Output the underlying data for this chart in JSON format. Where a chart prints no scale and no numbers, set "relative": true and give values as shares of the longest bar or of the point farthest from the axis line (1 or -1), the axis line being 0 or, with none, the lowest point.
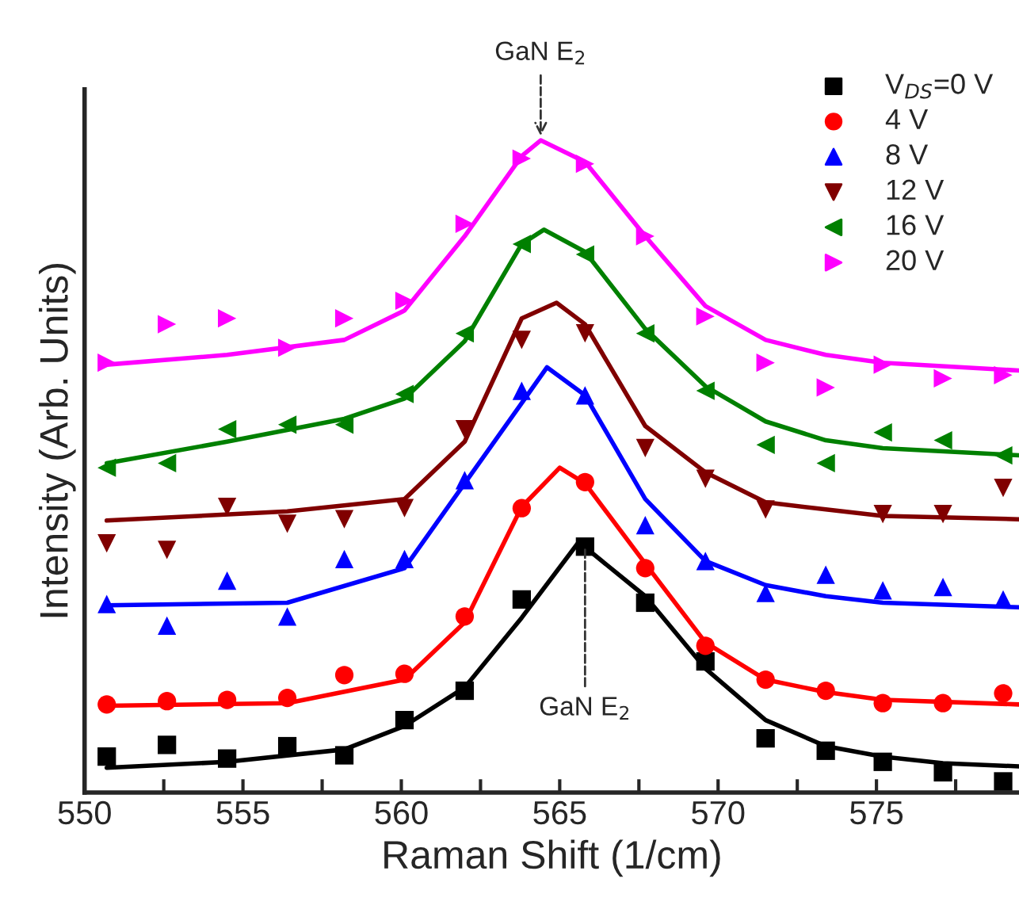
{
  "chart_data": {
    "type": "scatter",
    "relative": true,
    "xlabel": "Raman Shift (1/cm)",
    "ylabel": "Intensity (Arb. Units)",
    "xlim": [
      550,
      579.5
    ],
    "xticks": [
      550,
      {
        "value": 552.5,
        "label": null
      },
      555,
      {
        "value": 557.5,
        "label": null
      },
      560,
      {
        "value": 562.5,
        "label": null
      },
      565,
      {
        "value": 567.5,
        "label": null
      },
      570,
      {
        "value": 572.5,
        "label": null
      },
      575,
      {
        "value": 577.5,
        "label": null
      }
    ],
    "legend": "top right",
    "annotations": [
      {
        "text": "GaN E$_{2}$",
        "x": 564.4,
        "y": 1.0
      },
      {
        "text": "GaN E$_{2}$",
        "x": 565.8,
        "y": 0.384
      }
    ],
    "series": [
      {
        "name": "V$_{DS}$=0 V",
        "type": "scatter",
        "marker": "square",
        "color": "#000000",
        "x": [
          550.7,
          552.6,
          554.5,
          556.4,
          558.2,
          560.1,
          562.0,
          563.8,
          565.8,
          567.7,
          569.6,
          571.5,
          573.4,
          575.2,
          577.1,
          579.0
        ],
        "values": [
          0.055,
          0.073,
          0.052,
          0.071,
          0.057,
          0.111,
          0.156,
          0.296,
          0.377,
          0.291,
          0.201,
          0.083,
          0.064,
          0.047,
          0.031,
          0.017
        ]
      },
      {
        "name": "4 V",
        "type": "scatter",
        "marker": "circle",
        "color": "#ff0000",
        "x": [
          550.7,
          552.6,
          554.5,
          556.4,
          558.2,
          560.1,
          562.0,
          563.8,
          565.8,
          567.7,
          569.6,
          571.5,
          573.4,
          575.2,
          577.1,
          579.0
        ],
        "values": [
          0.135,
          0.14,
          0.142,
          0.145,
          0.18,
          0.182,
          0.27,
          0.436,
          0.476,
          0.344,
          0.225,
          0.173,
          0.156,
          0.137,
          0.137,
          0.152
        ]
      },
      {
        "name": "8 V",
        "type": "scatter",
        "marker": "triangle",
        "color": "#0000ff",
        "x": [
          550.7,
          552.6,
          554.5,
          556.4,
          558.2,
          560.1,
          562.0,
          563.8,
          565.8,
          567.7,
          569.6,
          571.5,
          573.4,
          575.2,
          577.1,
          579.0
        ],
        "values": [
          0.289,
          0.256,
          0.325,
          0.27,
          0.358,
          0.358,
          0.479,
          0.616,
          0.609,
          0.41,
          0.355,
          0.306,
          0.334,
          0.31,
          0.315,
          0.296
        ]
      },
      {
        "name": "12 V",
        "type": "scatter",
        "marker": "triangle-down",
        "color": "#800000",
        "x": [
          550.7,
          552.6,
          554.5,
          556.4,
          558.2,
          560.1,
          562.0,
          563.8,
          565.8,
          567.7,
          569.6,
          571.5,
          573.4,
          575.2,
          577.1,
          579.0
        ],
        "values": [
          0.382,
          0.372,
          0.438,
          0.412,
          0.419,
          0.436,
          0.557,
          0.694,
          0.704,
          0.528,
          0.481,
          0.434,
          null,
          0.427,
          0.427,
          0.467
        ]
      },
      {
        "name": "16 V",
        "type": "scatter",
        "marker": "triangle-left",
        "color": "#008000",
        "x": [
          550.7,
          552.6,
          554.5,
          556.4,
          558.2,
          560.1,
          562.0,
          563.8,
          565.8,
          567.7,
          569.6,
          571.5,
          573.4,
          575.2,
          577.1,
          579.0
        ],
        "values": [
          0.498,
          0.505,
          0.557,
          0.564,
          0.564,
          0.611,
          0.704,
          0.841,
          0.825,
          0.704,
          0.616,
          0.533,
          0.505,
          0.552,
          0.54,
          0.517
        ]
      },
      {
        "name": "20 V",
        "type": "scatter",
        "marker": "triangle-right",
        "color": "#ff00ff",
        "x": [
          550.7,
          552.6,
          554.5,
          556.4,
          558.2,
          560.1,
          562.0,
          563.8,
          565.8,
          567.7,
          569.6,
          571.5,
          573.4,
          575.2,
          577.1,
          579.0
        ],
        "values": [
          0.659,
          0.718,
          0.727,
          0.682,
          0.727,
          0.754,
          0.872,
          0.972,
          0.964,
          0.853,
          0.73,
          0.659,
          0.621,
          0.656,
          0.635,
          0.64
        ]
      },
      {
        "type": "line",
        "color": "#000000",
        "x": [
          550.7,
          554.5,
          558.2,
          560.1,
          562.0,
          563.8,
          565.6,
          567.7,
          569.6,
          571.5,
          573.4,
          575.2,
          577.1,
          579.5
        ],
        "values": [
          0.038,
          0.047,
          0.066,
          0.102,
          0.161,
          0.268,
          0.384,
          0.301,
          0.19,
          0.111,
          0.071,
          0.055,
          0.045,
          0.04
        ]
      },
      {
        "type": "line",
        "color": "#ff0000",
        "x": [
          550.7,
          556.4,
          560.1,
          562.0,
          563.8,
          565.0,
          565.8,
          567.7,
          569.6,
          571.5,
          573.4,
          575.2,
          579.5
        ],
        "values": [
          0.133,
          0.137,
          0.173,
          0.261,
          0.438,
          0.498,
          0.474,
          0.351,
          0.23,
          0.173,
          0.154,
          0.142,
          0.135
        ]
      },
      {
        "type": "line",
        "color": "#0000ff",
        "x": [
          550.7,
          556.4,
          560.1,
          562.0,
          563.8,
          564.6,
          565.8,
          567.7,
          569.6,
          571.5,
          573.4,
          575.2,
          579.5
        ],
        "values": [
          0.287,
          0.291,
          0.344,
          0.474,
          0.597,
          0.652,
          0.609,
          0.45,
          0.355,
          0.318,
          0.301,
          0.291,
          0.284
        ]
      },
      {
        "type": "line",
        "color": "#800000",
        "x": [
          550.7,
          556.4,
          560.1,
          562.0,
          563.8,
          564.9,
          565.8,
          567.7,
          569.6,
          571.5,
          573.4,
          575.2,
          579.5
        ],
        "values": [
          0.417,
          0.431,
          0.45,
          0.538,
          0.727,
          0.751,
          0.718,
          0.562,
          0.491,
          0.445,
          0.434,
          0.424,
          0.419
        ]
      },
      {
        "type": "line",
        "color": "#008000",
        "x": [
          550.7,
          554.5,
          558.2,
          560.1,
          562.0,
          563.8,
          564.5,
          565.8,
          567.7,
          569.6,
          571.5,
          573.4,
          575.2,
          579.5
        ],
        "values": [
          0.505,
          0.538,
          0.573,
          0.604,
          0.692,
          0.841,
          0.863,
          0.829,
          0.711,
          0.623,
          0.569,
          0.54,
          0.528,
          0.517
        ]
      },
      {
        "type": "line",
        "color": "#ff00ff",
        "x": [
          550.7,
          554.5,
          558.2,
          560.1,
          562.0,
          563.8,
          564.4,
          565.8,
          567.7,
          569.6,
          571.5,
          573.4,
          575.2,
          579.5
        ],
        "values": [
          0.656,
          0.671,
          0.694,
          0.739,
          0.853,
          0.976,
          1.0,
          0.967,
          0.853,
          0.746,
          0.694,
          0.671,
          0.659,
          0.647
        ]
      }
    ]
  }
}
